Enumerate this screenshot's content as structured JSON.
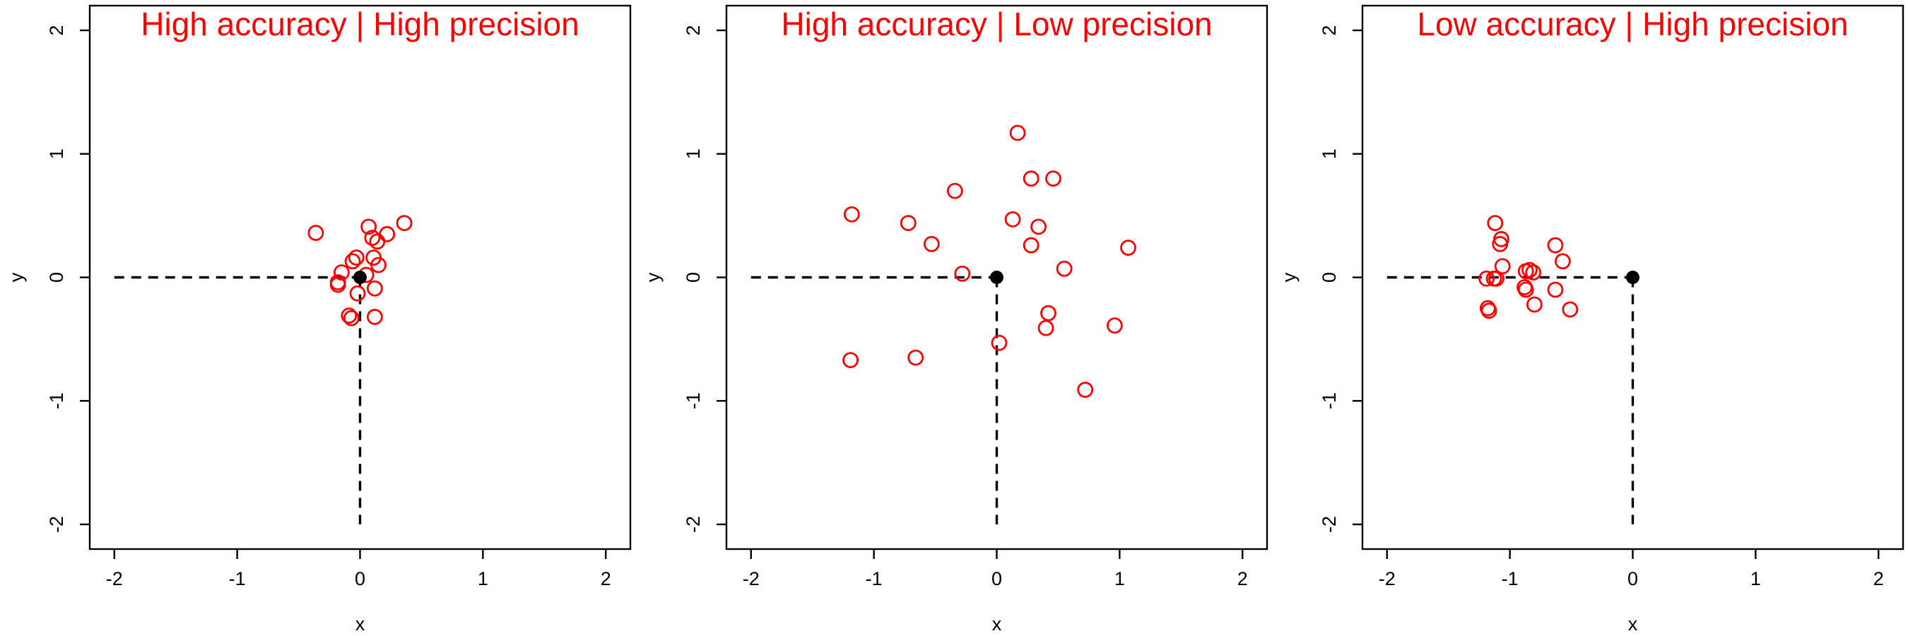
{
  "chart_data": [
    {
      "type": "scatter",
      "title": "High accuracy | High precision",
      "xlabel": "x",
      "ylabel": "y",
      "xlim": [
        -2.2,
        2.2
      ],
      "ylim": [
        -2.2,
        2.2
      ],
      "xticks": [
        "-2",
        "-1",
        "0",
        "1",
        "2"
      ],
      "yticks": [
        "-2",
        "-1",
        "0",
        "1",
        "2"
      ],
      "grid": false,
      "target": {
        "x": 0,
        "y": 0
      },
      "points": [
        {
          "x": -0.36,
          "y": 0.36
        },
        {
          "x": 0.36,
          "y": 0.44
        },
        {
          "x": 0.07,
          "y": 0.41
        },
        {
          "x": 0.22,
          "y": 0.35
        },
        {
          "x": 0.1,
          "y": 0.32
        },
        {
          "x": 0.14,
          "y": 0.29
        },
        {
          "x": -0.03,
          "y": 0.16
        },
        {
          "x": 0.11,
          "y": 0.16
        },
        {
          "x": -0.06,
          "y": 0.13
        },
        {
          "x": 0.15,
          "y": 0.1
        },
        {
          "x": -0.15,
          "y": 0.04
        },
        {
          "x": 0.05,
          "y": 0.02
        },
        {
          "x": -0.18,
          "y": -0.04
        },
        {
          "x": -0.18,
          "y": -0.06
        },
        {
          "x": 0.12,
          "y": -0.09
        },
        {
          "x": -0.02,
          "y": -0.13
        },
        {
          "x": -0.09,
          "y": -0.31
        },
        {
          "x": -0.07,
          "y": -0.33
        },
        {
          "x": 0.12,
          "y": -0.32
        }
      ]
    },
    {
      "type": "scatter",
      "title": "High accuracy | Low precision",
      "xlabel": "x",
      "ylabel": "y",
      "xlim": [
        -2.2,
        2.2
      ],
      "ylim": [
        -2.2,
        2.2
      ],
      "xticks": [
        "-2",
        "-1",
        "0",
        "1",
        "2"
      ],
      "yticks": [
        "-2",
        "-1",
        "0",
        "1",
        "2"
      ],
      "grid": false,
      "target": {
        "x": 0,
        "y": 0
      },
      "points": [
        {
          "x": 0.17,
          "y": 1.17
        },
        {
          "x": 0.28,
          "y": 0.8
        },
        {
          "x": 0.46,
          "y": 0.8
        },
        {
          "x": -0.34,
          "y": 0.7
        },
        {
          "x": -1.18,
          "y": 0.51
        },
        {
          "x": -0.72,
          "y": 0.44
        },
        {
          "x": 0.13,
          "y": 0.47
        },
        {
          "x": 0.34,
          "y": 0.41
        },
        {
          "x": -0.53,
          "y": 0.27
        },
        {
          "x": 0.28,
          "y": 0.26
        },
        {
          "x": 1.07,
          "y": 0.24
        },
        {
          "x": 0.55,
          "y": 0.07
        },
        {
          "x": -0.28,
          "y": 0.03
        },
        {
          "x": 0.42,
          "y": -0.29
        },
        {
          "x": 0.4,
          "y": -0.41
        },
        {
          "x": 0.96,
          "y": -0.39
        },
        {
          "x": 0.02,
          "y": -0.53
        },
        {
          "x": -1.19,
          "y": -0.67
        },
        {
          "x": -0.66,
          "y": -0.65
        },
        {
          "x": 0.72,
          "y": -0.91
        }
      ]
    },
    {
      "type": "scatter",
      "title": "Low accuracy | High precision",
      "xlabel": "x",
      "ylabel": "y",
      "xlim": [
        -2.2,
        2.2
      ],
      "ylim": [
        -2.2,
        2.2
      ],
      "xticks": [
        "-2",
        "-1",
        "0",
        "1",
        "2"
      ],
      "yticks": [
        "-2",
        "-1",
        "0",
        "1",
        "2"
      ],
      "grid": false,
      "target": {
        "x": 0,
        "y": 0
      },
      "points": [
        {
          "x": -1.12,
          "y": 0.44
        },
        {
          "x": -1.07,
          "y": 0.31
        },
        {
          "x": -1.08,
          "y": 0.27
        },
        {
          "x": -0.63,
          "y": 0.26
        },
        {
          "x": -0.57,
          "y": 0.13
        },
        {
          "x": -1.06,
          "y": 0.09
        },
        {
          "x": -0.87,
          "y": 0.05
        },
        {
          "x": -0.84,
          "y": 0.06
        },
        {
          "x": -0.81,
          "y": 0.04
        },
        {
          "x": -1.19,
          "y": -0.01
        },
        {
          "x": -1.13,
          "y": -0.01
        },
        {
          "x": -1.11,
          "y": -0.01
        },
        {
          "x": -0.88,
          "y": -0.08
        },
        {
          "x": -0.87,
          "y": -0.1
        },
        {
          "x": -0.63,
          "y": -0.1
        },
        {
          "x": -0.8,
          "y": -0.22
        },
        {
          "x": -1.18,
          "y": -0.25
        },
        {
          "x": -1.17,
          "y": -0.27
        },
        {
          "x": -0.51,
          "y": -0.26
        }
      ]
    }
  ],
  "colors": {
    "title": "#ff0000",
    "points": "#ff0000",
    "target": "#000000",
    "axes": "#000000"
  }
}
